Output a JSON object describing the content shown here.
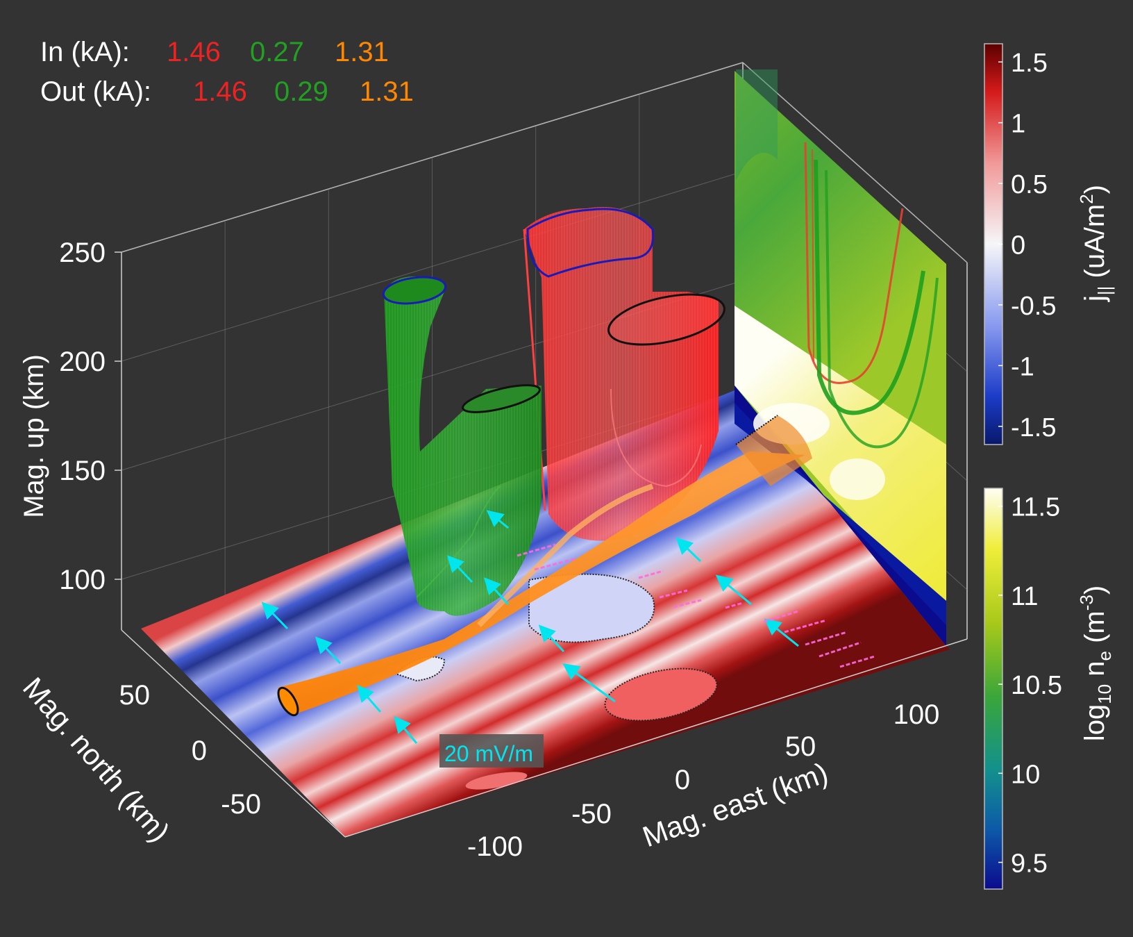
{
  "chart_data": {
    "type": "3d-surface",
    "current_header": {
      "in_label": "In (kA):",
      "out_label": "Out (kA):",
      "in_values": [
        "1.46",
        "0.27",
        "1.31"
      ],
      "out_values": [
        "1.46",
        "0.29",
        "1.31"
      ],
      "value_colors": [
        "#ee2222",
        "#22a022",
        "#ff8800"
      ]
    },
    "axes": {
      "x": {
        "label": "Mag. east (km)",
        "ticks": [
          "-100",
          "-50",
          "0",
          "50",
          "100"
        ]
      },
      "y": {
        "label": "Mag. north (km)",
        "ticks": [
          "50",
          "0",
          "-50"
        ]
      },
      "z": {
        "label": "Mag. up (km)",
        "ticks": [
          "250",
          "200",
          "150",
          "100"
        ]
      }
    },
    "colorbars": [
      {
        "name": "j_parallel",
        "label_main": "j",
        "label_sub": "||",
        "label_rest": " (uA/m",
        "label_sup": "2",
        "label_close": ")",
        "ticks": [
          "1.5",
          "1",
          "0.5",
          "0",
          "-0.5",
          "-1",
          "-1.5"
        ],
        "range": [
          -1.65,
          1.65
        ],
        "colormap": "blue-white-red"
      },
      {
        "name": "log_ne",
        "label_pre": "log",
        "label_sub": "10",
        "label_mid": " n",
        "label_sub2": "e",
        "label_rest": " (m",
        "label_sup": "-3",
        "label_close": ")",
        "ticks": [
          "11.5",
          "11",
          "10.5",
          "10",
          "9.5"
        ],
        "range": [
          9.35,
          11.6
        ],
        "colormap": "blue-green-yellow-white"
      }
    ],
    "flux_tubes": [
      {
        "name": "red",
        "color": "#ff2020",
        "current_in": 1.46,
        "current_out": 1.46
      },
      {
        "name": "green",
        "color": "#20a020",
        "current_in": 0.27,
        "current_out": 0.29
      },
      {
        "name": "orange",
        "color": "#ff8c00",
        "current_in": 1.31,
        "current_out": 1.31
      }
    ],
    "electric_field_scale": {
      "label": "20 mV/m",
      "color": "#00e5ee"
    },
    "grid": true
  }
}
